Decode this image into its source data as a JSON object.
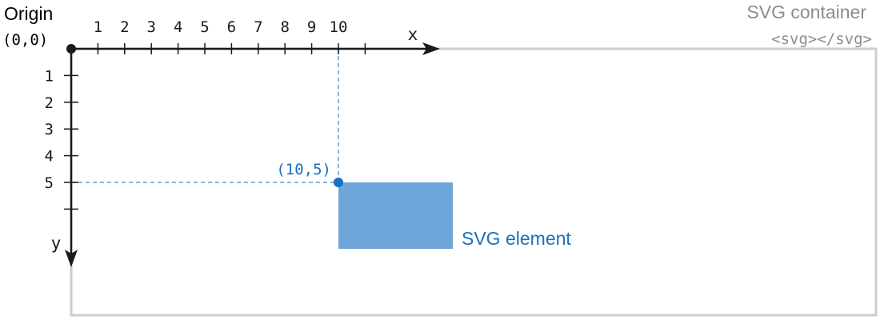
{
  "origin": {
    "label": "Origin",
    "coords": "(0,0)"
  },
  "container": {
    "title": "SVG container",
    "tag": "<svg></svg>"
  },
  "axes": {
    "x_label": "x",
    "y_label": "y",
    "x_ticks": [
      "1",
      "2",
      "3",
      "4",
      "5",
      "6",
      "7",
      "8",
      "9",
      "10"
    ],
    "y_ticks": [
      "1",
      "2",
      "3",
      "4",
      "5"
    ]
  },
  "point": {
    "label": "(10,5)",
    "x": 10,
    "y": 5
  },
  "element": {
    "label": "SVG element"
  },
  "colors": {
    "axis": "#1a1a1a",
    "container": "#cccccc",
    "container_text": "#8c8c8c",
    "accent": "#1a6fc0",
    "rect_fill": "#6ea6da",
    "guide": "#5aa2dd"
  }
}
